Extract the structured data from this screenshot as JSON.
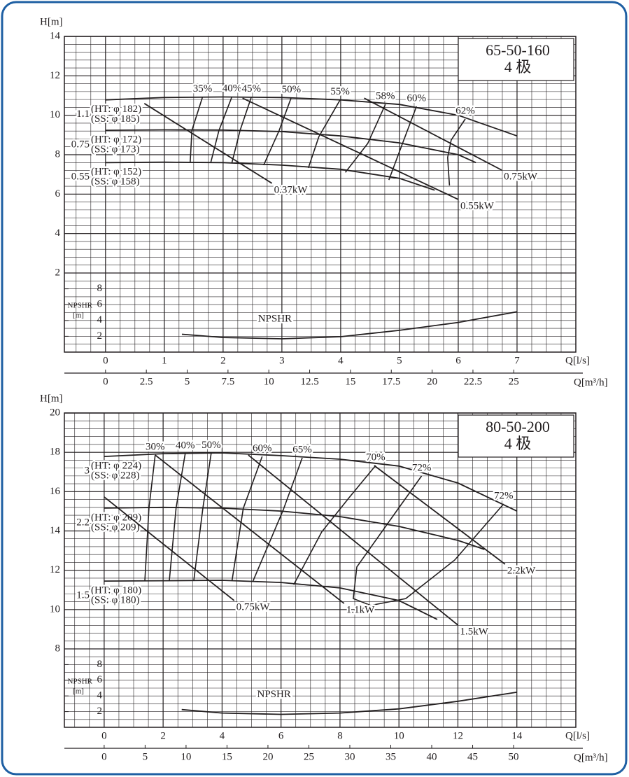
{
  "chart_data": [
    {
      "type": "line",
      "title": "65-50-160",
      "subtitle": "4 极",
      "color": "#231f20",
      "grid": true,
      "y_label": "H[m]",
      "x_label": "Q[l/s]",
      "x2_label": "Q[m³/h]",
      "y2_label": "NPSHR",
      "y2_unit": "[m]",
      "xlim": [
        -0.7,
        8
      ],
      "xticks": [
        0,
        1,
        2,
        3,
        4,
        5,
        6,
        7
      ],
      "x2lim": [
        -2.52,
        28.8
      ],
      "x2ticks": [
        0,
        2.5,
        5,
        7.5,
        10,
        12.5,
        15,
        17.5,
        20,
        22.5,
        25
      ],
      "ylim": [
        2,
        14
      ],
      "yticks": [
        2,
        4,
        6,
        8,
        10,
        12,
        14
      ],
      "y2lim": [
        0,
        10
      ],
      "y2ticks": [
        2,
        4,
        6,
        8
      ],
      "series": [
        {
          "name": "1.1",
          "kind": "head",
          "labels": [
            "(HT: φ 182)",
            "(SS: φ 185)"
          ],
          "x": [
            0,
            1,
            2,
            3,
            4,
            5,
            6,
            7
          ],
          "values": [
            10.78,
            10.9,
            10.93,
            10.9,
            10.78,
            10.55,
            10.0,
            8.95
          ]
        },
        {
          "name": "0.75",
          "kind": "head",
          "labels": [
            "(HT: φ 172)",
            "(SS: φ 173)"
          ],
          "x": [
            0,
            1,
            2,
            3,
            4,
            5,
            6,
            6.3
          ],
          "values": [
            9.24,
            9.26,
            9.25,
            9.17,
            8.95,
            8.6,
            8.0,
            7.6
          ]
        },
        {
          "name": "0.55",
          "kind": "head",
          "labels": [
            "(HT: φ 152)",
            "(SS: φ 158)"
          ],
          "x": [
            0,
            1,
            2,
            3,
            4,
            5,
            5.6
          ],
          "values": [
            7.6,
            7.62,
            7.6,
            7.47,
            7.26,
            6.8,
            6.2
          ]
        },
        {
          "name": "35%",
          "kind": "efficiency",
          "x": [
            1.44,
            1.47,
            1.65
          ],
          "values": [
            7.6,
            9.24,
            10.93
          ]
        },
        {
          "name": "40%",
          "kind": "efficiency",
          "x": [
            1.79,
            1.93,
            2.15
          ],
          "values": [
            7.6,
            9.24,
            10.94
          ]
        },
        {
          "name": "45%",
          "kind": "efficiency",
          "x": [
            2.15,
            2.29,
            2.48
          ],
          "values": [
            7.6,
            9.24,
            10.92
          ]
        },
        {
          "name": "50%",
          "kind": "efficiency",
          "x": [
            2.69,
            2.95,
            3.16
          ],
          "values": [
            7.47,
            9.2,
            10.9
          ]
        },
        {
          "name": "55%",
          "kind": "efficiency",
          "x": [
            3.45,
            3.63,
            3.99
          ],
          "values": [
            7.33,
            8.92,
            10.78
          ]
        },
        {
          "name": "58%",
          "kind": "efficiency",
          "x": [
            4.08,
            4.46,
            4.76
          ],
          "values": [
            7.1,
            8.57,
            10.55
          ]
        },
        {
          "name": "60%",
          "kind": "efficiency",
          "x": [
            4.82,
            5.03,
            5.29
          ],
          "values": [
            6.72,
            8.4,
            10.45
          ]
        },
        {
          "name": "62%",
          "kind": "efficiency",
          "x": [
            5.85,
            5.82,
            5.88,
            6.12
          ],
          "values": [
            6.44,
            7.86,
            8.75,
            9.81
          ]
        },
        {
          "name": "0.37kW",
          "kind": "power",
          "x": [
            0.66,
            2.83
          ],
          "values": [
            10.6,
            6.55
          ]
        },
        {
          "name": "0.55kW",
          "kind": "power",
          "x": [
            2.33,
            6.0
          ],
          "values": [
            10.87,
            5.73
          ]
        },
        {
          "name": "0.75kW",
          "kind": "power",
          "x": [
            4.4,
            6.74
          ],
          "values": [
            10.87,
            7.22
          ]
        },
        {
          "name": "NPSHR",
          "kind": "npshr",
          "axis": "y2",
          "x": [
            1.3,
            2,
            3,
            4,
            5,
            6,
            7
          ],
          "values": [
            2.26,
            1.85,
            1.68,
            1.95,
            2.75,
            3.75,
            5.1
          ]
        }
      ]
    },
    {
      "type": "line",
      "title": "80-50-200",
      "subtitle": "4 极",
      "color": "#231f20",
      "grid": true,
      "y_label": "H[m]",
      "x_label": "Q[l/s]",
      "x2_label": "Q[m³/h]",
      "y2_label": "NPSHR",
      "y2_unit": "[m]",
      "xlim": [
        -1.35,
        16
      ],
      "xticks": [
        0,
        2,
        4,
        6,
        8,
        10,
        12,
        14
      ],
      "x2lim": [
        -4.86,
        57.6
      ],
      "x2ticks": [
        0,
        5,
        10,
        15,
        20,
        25,
        30,
        35,
        40,
        45,
        50
      ],
      "ylim": [
        8,
        20
      ],
      "yticks": [
        8,
        10,
        12,
        14,
        16,
        18,
        20
      ],
      "y2lim": [
        0,
        10
      ],
      "y2ticks": [
        2,
        4,
        6,
        8
      ],
      "series": [
        {
          "name": "3",
          "kind": "head",
          "labels": [
            "(HT: φ 224)",
            "(SS: φ 228)"
          ],
          "x": [
            0,
            2,
            4,
            6,
            8,
            10,
            12,
            14
          ],
          "values": [
            17.79,
            17.93,
            17.97,
            17.83,
            17.65,
            17.3,
            16.44,
            15.01
          ]
        },
        {
          "name": "2.2",
          "kind": "head",
          "labels": [
            "(HT: φ 209)",
            "(SS: φ 209)"
          ],
          "x": [
            0,
            2,
            4,
            6,
            8,
            10,
            12,
            12.9
          ],
          "values": [
            15.16,
            15.2,
            15.16,
            15.01,
            14.73,
            14.23,
            13.52,
            13.06
          ]
        },
        {
          "name": "1.5",
          "kind": "head",
          "labels": [
            "(HT: φ 180)",
            "(SS: φ 180)"
          ],
          "x": [
            0,
            2,
            4,
            6,
            8,
            10,
            11.3
          ],
          "values": [
            11.45,
            11.47,
            11.49,
            11.38,
            11.1,
            10.46,
            9.5
          ]
        },
        {
          "name": "30%",
          "kind": "efficiency",
          "x": [
            1.38,
            1.52,
            1.73
          ],
          "values": [
            11.45,
            15.16,
            17.86
          ]
        },
        {
          "name": "40%",
          "kind": "efficiency",
          "x": [
            2.21,
            2.44,
            2.75
          ],
          "values": [
            11.47,
            15.18,
            17.93
          ]
        },
        {
          "name": "50%",
          "kind": "efficiency",
          "x": [
            3.04,
            3.35,
            3.63
          ],
          "values": [
            11.48,
            15.17,
            17.95
          ]
        },
        {
          "name": "60%",
          "kind": "efficiency",
          "x": [
            4.34,
            4.72,
            5.36
          ],
          "values": [
            11.49,
            15.15,
            17.79
          ]
        },
        {
          "name": "65%",
          "kind": "efficiency",
          "x": [
            5.05,
            6.07,
            6.72
          ],
          "values": [
            11.45,
            15.05,
            17.72
          ]
        },
        {
          "name": "70%",
          "kind": "efficiency",
          "x": [
            6.43,
            7.38,
            8.33,
            9.21
          ],
          "values": [
            11.27,
            13.95,
            15.73,
            17.33
          ]
        },
        {
          "name": "72%",
          "kind": "efficiency",
          "x": [
            9.04,
            8.45,
            8.57,
            9.75,
            10.77
          ],
          "values": [
            10.21,
            10.56,
            12.17,
            14.66,
            16.8
          ]
        },
        {
          "name": "72%",
          "kind": "efficiency",
          "x": [
            9.04,
            10.23,
            11.89,
            13.55
          ],
          "values": [
            10.21,
            10.56,
            12.52,
            15.37
          ]
        },
        {
          "name": "0.75kW",
          "kind": "power",
          "x": [
            0,
            4.41
          ],
          "values": [
            15.73,
            10.46
          ]
        },
        {
          "name": "1.1kW",
          "kind": "power",
          "x": [
            1.73,
            8.14
          ],
          "values": [
            17.86,
            10.31
          ]
        },
        {
          "name": "1.5kW",
          "kind": "power",
          "x": [
            4.89,
            12.0
          ],
          "values": [
            17.86,
            9.21
          ]
        },
        {
          "name": "2.2kW",
          "kind": "power",
          "x": [
            9.16,
            13.6
          ],
          "values": [
            17.33,
            12.31
          ]
        },
        {
          "name": "NPSHR",
          "kind": "npshr",
          "axis": "y2",
          "x": [
            2.63,
            4,
            6,
            8,
            10,
            12,
            14
          ],
          "values": [
            2.26,
            1.82,
            1.65,
            1.82,
            2.35,
            3.32,
            4.47
          ]
        }
      ]
    }
  ]
}
